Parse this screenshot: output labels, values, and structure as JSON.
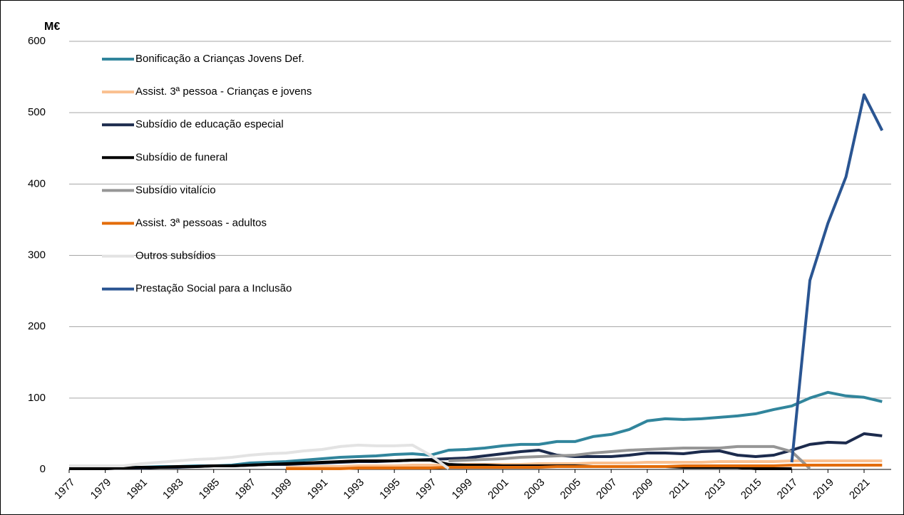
{
  "chart_data": {
    "type": "line",
    "y_label": "M€",
    "x": [
      1977,
      1978,
      1979,
      1980,
      1981,
      1982,
      1983,
      1984,
      1985,
      1986,
      1987,
      1988,
      1989,
      1990,
      1991,
      1992,
      1993,
      1994,
      1995,
      1996,
      1997,
      1998,
      1999,
      2000,
      2001,
      2002,
      2003,
      2004,
      2005,
      2006,
      2007,
      2008,
      2009,
      2010,
      2011,
      2012,
      2013,
      2014,
      2015,
      2016,
      2017,
      2018,
      2019,
      2020,
      2021,
      2022
    ],
    "xlim": [
      1977,
      2022.5
    ],
    "xticks": [
      1977,
      1979,
      1981,
      1983,
      1985,
      1987,
      1989,
      1991,
      1993,
      1995,
      1997,
      1999,
      2001,
      2003,
      2005,
      2007,
      2009,
      2011,
      2013,
      2015,
      2017,
      2019,
      2021
    ],
    "ylim": [
      0,
      600
    ],
    "yticks": [
      0,
      100,
      200,
      300,
      400,
      500,
      600
    ],
    "grid": true,
    "series": [
      {
        "name": "Bonificação a Crianças Jovens Def.",
        "color": "#31859c",
        "values": [
          3,
          3,
          3,
          3,
          3,
          4,
          4,
          5,
          5,
          6,
          9,
          10,
          11,
          13,
          15,
          17,
          18,
          19,
          21,
          22,
          20,
          27,
          28,
          30,
          33,
          35,
          35,
          39,
          39,
          46,
          49,
          56,
          68,
          71,
          70,
          71,
          73,
          75,
          78,
          84,
          89,
          100,
          108,
          103,
          101,
          95
        ]
      },
      {
        "name": "Assist. 3ª pessoa - Crianças e jovens",
        "color": "#fac090",
        "values": [
          null,
          null,
          null,
          null,
          null,
          null,
          null,
          null,
          null,
          null,
          null,
          null,
          3,
          3,
          4,
          4,
          5,
          5,
          5,
          6,
          6,
          6,
          7,
          7,
          7,
          7,
          8,
          8,
          8,
          9,
          9,
          9,
          10,
          10,
          10,
          10,
          11,
          11,
          11,
          11,
          12,
          12,
          12,
          12,
          12,
          12
        ]
      },
      {
        "name": "Subsídio de educação especial",
        "color": "#1c2b4d",
        "values": [
          1,
          1,
          1,
          2,
          2,
          3,
          3,
          4,
          5,
          5,
          6,
          7,
          7,
          8,
          9,
          10,
          11,
          11,
          12,
          13,
          14,
          15,
          16,
          19,
          22,
          25,
          27,
          20,
          18,
          18,
          18,
          20,
          23,
          23,
          22,
          25,
          26,
          20,
          18,
          20,
          27,
          35,
          38,
          37,
          50,
          47
        ]
      },
      {
        "name": "Subsídio de funeral",
        "color": "#000000",
        "values": [
          1,
          1,
          1,
          2,
          3,
          3,
          4,
          4,
          5,
          5,
          6,
          7,
          8,
          9,
          10,
          11,
          12,
          12,
          12,
          13,
          13,
          7,
          6,
          6,
          5,
          5,
          5,
          5,
          5,
          4,
          4,
          4,
          4,
          4,
          3,
          3,
          3,
          3,
          1,
          1,
          1,
          null,
          null,
          null,
          null,
          null
        ]
      },
      {
        "name": "Subsídio vitalício",
        "color": "#969696",
        "values": [
          null,
          null,
          null,
          null,
          null,
          null,
          null,
          null,
          null,
          null,
          null,
          null,
          null,
          null,
          null,
          null,
          null,
          null,
          null,
          null,
          null,
          12,
          13,
          14,
          15,
          17,
          18,
          19,
          20,
          23,
          25,
          27,
          28,
          29,
          30,
          30,
          30,
          32,
          32,
          32,
          25,
          1,
          null,
          null,
          null,
          null
        ]
      },
      {
        "name": "Assist. 3ª pessoas - adultos",
        "color": "#e36c09",
        "values": [
          null,
          null,
          null,
          null,
          null,
          null,
          null,
          null,
          null,
          null,
          null,
          null,
          1,
          1,
          1,
          1,
          2,
          2,
          2,
          2,
          2,
          3,
          3,
          3,
          3,
          3,
          3,
          4,
          4,
          4,
          4,
          4,
          4,
          4,
          5,
          5,
          5,
          5,
          5,
          5,
          6,
          6,
          6,
          6,
          6,
          6
        ]
      },
      {
        "name": "Outros subsídios",
        "color": "#e3e3e3",
        "values": [
          5,
          5,
          5,
          5,
          8,
          10,
          12,
          14,
          15,
          17,
          20,
          22,
          23,
          26,
          28,
          32,
          34,
          33,
          33,
          34,
          20,
          1,
          null,
          null,
          null,
          null,
          null,
          null,
          null,
          null,
          null,
          null,
          null,
          null,
          null,
          null,
          null,
          null,
          null,
          null,
          null,
          null,
          null,
          null,
          null,
          null
        ]
      },
      {
        "name": "Prestação Social para a Inclusão",
        "color": "#2a5592",
        "values": [
          null,
          null,
          null,
          null,
          null,
          null,
          null,
          null,
          null,
          null,
          null,
          null,
          null,
          null,
          null,
          null,
          null,
          null,
          null,
          null,
          null,
          null,
          null,
          null,
          null,
          null,
          null,
          null,
          null,
          null,
          null,
          null,
          null,
          null,
          null,
          null,
          null,
          null,
          null,
          null,
          10,
          265,
          345,
          410,
          525,
          475
        ]
      }
    ]
  }
}
